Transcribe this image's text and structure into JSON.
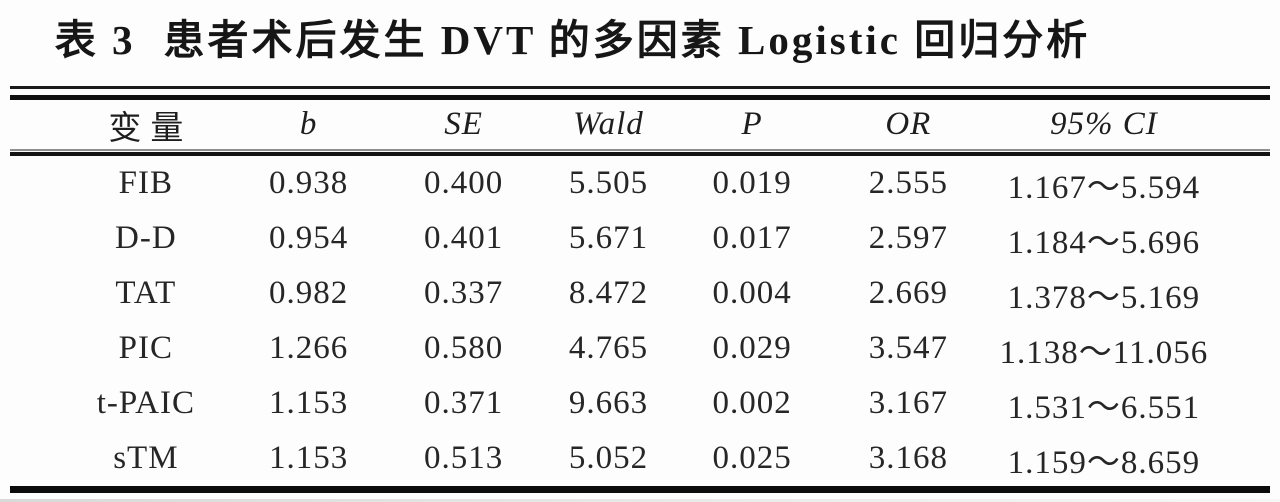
{
  "title": {
    "label": "表 3",
    "text": "患者术后发生 DVT 的多因素 Logistic 回归分析"
  },
  "table": {
    "columns": [
      "变量",
      "b",
      "SE",
      "Wald",
      "P",
      "OR",
      "95% CI"
    ],
    "rows": [
      [
        "FIB",
        "0.938",
        "0.400",
        "5.505",
        "0.019",
        "2.555",
        "1.167～5.594"
      ],
      [
        "D-D",
        "0.954",
        "0.401",
        "5.671",
        "0.017",
        "2.597",
        "1.184～5.696"
      ],
      [
        "TAT",
        "0.982",
        "0.337",
        "8.472",
        "0.004",
        "2.669",
        "1.378～5.169"
      ],
      [
        "PIC",
        "1.266",
        "0.580",
        "4.765",
        "0.029",
        "3.547",
        "1.138～11.056"
      ],
      [
        "t-PAIC",
        "1.153",
        "0.371",
        "9.663",
        "0.002",
        "3.167",
        "1.531～6.551"
      ],
      [
        "sTM",
        "1.153",
        "0.513",
        "5.052",
        "0.025",
        "3.168",
        "1.159～8.659"
      ]
    ]
  },
  "colors": {
    "text": "#262626",
    "rule": "#101010",
    "background": "#fdfdfd"
  }
}
